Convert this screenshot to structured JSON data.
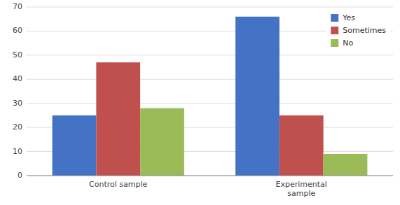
{
  "chart_data": {
    "type": "bar",
    "categories": [
      "Control sample",
      "Experimental\nsample"
    ],
    "series": [
      {
        "name": "Yes",
        "color": "#4472C4",
        "values": [
          25,
          66
        ]
      },
      {
        "name": "Sometimes",
        "color": "#C0504D",
        "values": [
          47,
          25
        ]
      },
      {
        "name": "No",
        "color": "#9BBB59",
        "values": [
          28,
          9
        ]
      }
    ],
    "ylim": [
      0,
      70
    ],
    "yticks": [
      0,
      10,
      20,
      30,
      40,
      50,
      60,
      70
    ],
    "grid": true,
    "legend": "upper right"
  }
}
